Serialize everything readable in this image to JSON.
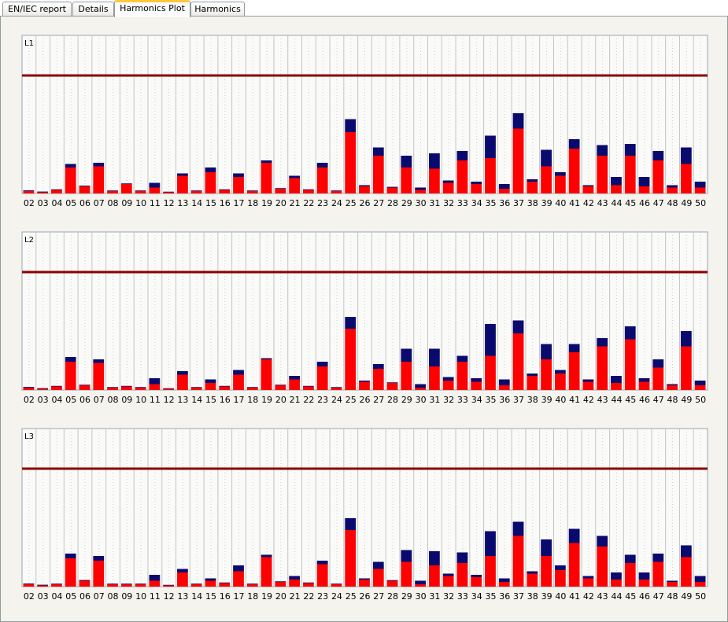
{
  "tabs": [
    {
      "label": "EN/IEC report",
      "active": false
    },
    {
      "label": "Details",
      "active": false
    },
    {
      "label": "Harmonics Plot",
      "active": true
    },
    {
      "label": "Harmonics",
      "active": false
    }
  ],
  "colors": {
    "bar_main": "#ff0000",
    "bar_top": "#0a0a6e",
    "limit_line": "#8b0000",
    "panel_bg": "#f4f3ee",
    "axis_border": "#9aa5b0"
  },
  "chart_data": [
    {
      "type": "bar",
      "stacked": true,
      "title": "L1",
      "categories": [
        "02",
        "03",
        "04",
        "05",
        "06",
        "07",
        "08",
        "09",
        "10",
        "11",
        "12",
        "13",
        "14",
        "15",
        "16",
        "17",
        "18",
        "19",
        "20",
        "21",
        "22",
        "23",
        "24",
        "25",
        "26",
        "27",
        "28",
        "29",
        "30",
        "31",
        "32",
        "33",
        "34",
        "35",
        "36",
        "37",
        "38",
        "39",
        "40",
        "41",
        "42",
        "43",
        "44",
        "45",
        "46",
        "47",
        "48",
        "49",
        "50"
      ],
      "limit": 100,
      "ylim": [
        0,
        134
      ],
      "series": [
        {
          "values": [
            2,
            1,
            3,
            22,
            6,
            23,
            2,
            8,
            2,
            5,
            1,
            15,
            2,
            18,
            3,
            14,
            2,
            26,
            4,
            13,
            3,
            22,
            2,
            52,
            6,
            32,
            5,
            22,
            3,
            21,
            9,
            28,
            8,
            30,
            4,
            55,
            10,
            23,
            15,
            38,
            6,
            32,
            7,
            32,
            6,
            28,
            5,
            25,
            5
          ]
        },
        {
          "values": [
            0.6,
            0.6,
            0.5,
            3,
            0.6,
            3,
            0.5,
            0.5,
            0.5,
            4,
            0.5,
            2,
            0.5,
            4,
            0.5,
            3,
            0.5,
            2,
            0.5,
            2,
            0.5,
            4,
            0.5,
            11,
            1,
            7,
            0.6,
            10,
            2,
            13,
            2,
            8,
            2,
            19,
            4,
            13,
            2,
            14,
            3,
            8,
            1,
            9,
            7,
            10,
            8,
            8,
            2,
            14,
            5
          ]
        }
      ]
    },
    {
      "type": "bar",
      "stacked": true,
      "title": "L2",
      "categories": [
        "02",
        "03",
        "04",
        "05",
        "06",
        "07",
        "08",
        "09",
        "10",
        "11",
        "12",
        "13",
        "14",
        "15",
        "16",
        "17",
        "18",
        "19",
        "20",
        "21",
        "22",
        "23",
        "24",
        "25",
        "26",
        "27",
        "28",
        "29",
        "30",
        "31",
        "32",
        "33",
        "34",
        "35",
        "36",
        "37",
        "38",
        "39",
        "40",
        "41",
        "42",
        "43",
        "44",
        "45",
        "46",
        "47",
        "48",
        "49",
        "50"
      ],
      "limit": 100,
      "ylim": [
        0,
        134
      ],
      "series": [
        {
          "values": [
            2,
            1,
            3,
            24,
            4,
            23,
            2,
            3,
            2,
            5,
            1,
            13,
            2,
            6,
            3,
            13,
            2,
            26,
            4,
            9,
            3,
            20,
            2,
            52,
            7,
            18,
            6,
            24,
            2,
            20,
            8,
            24,
            7,
            29,
            4,
            48,
            12,
            26,
            14,
            32,
            7,
            37,
            6,
            43,
            7,
            19,
            4,
            37,
            4
          ]
        },
        {
          "values": [
            0.6,
            0.6,
            0.5,
            4,
            0.5,
            3,
            0.5,
            0.5,
            0.5,
            5,
            0.5,
            3,
            0.5,
            3,
            0.5,
            4,
            0.5,
            1,
            0.5,
            3,
            0.5,
            4,
            0.5,
            10,
            1,
            4,
            0.5,
            11,
            3,
            15,
            3,
            5,
            3,
            27,
            5,
            11,
            2,
            13,
            3,
            7,
            2,
            7,
            6,
            11,
            3,
            7,
            1,
            13,
            4
          ]
        }
      ]
    },
    {
      "type": "bar",
      "stacked": true,
      "title": "L3",
      "categories": [
        "02",
        "03",
        "04",
        "05",
        "06",
        "07",
        "08",
        "09",
        "10",
        "11",
        "12",
        "13",
        "14",
        "15",
        "16",
        "17",
        "18",
        "19",
        "20",
        "21",
        "22",
        "23",
        "24",
        "25",
        "26",
        "27",
        "28",
        "29",
        "30",
        "31",
        "32",
        "33",
        "34",
        "35",
        "36",
        "37",
        "38",
        "39",
        "40",
        "41",
        "42",
        "43",
        "44",
        "45",
        "46",
        "47",
        "48",
        "49",
        "50"
      ],
      "limit": 100,
      "ylim": [
        0,
        134
      ],
      "series": [
        {
          "values": [
            2,
            1,
            2,
            24,
            5,
            22,
            2,
            2,
            2,
            5,
            1,
            12,
            2,
            5,
            3,
            13,
            2,
            25,
            4,
            6,
            3,
            19,
            2,
            48,
            6,
            15,
            5,
            21,
            2,
            18,
            9,
            20,
            8,
            26,
            4,
            43,
            11,
            26,
            14,
            37,
            7,
            34,
            6,
            20,
            6,
            21,
            4,
            25,
            4
          ]
        },
        {
          "values": [
            0.6,
            0.6,
            0.5,
            4,
            0.6,
            4,
            0.5,
            0.5,
            0.5,
            5,
            0.5,
            3,
            0.5,
            2,
            0.5,
            5,
            0.5,
            2,
            0.5,
            3,
            0.5,
            3,
            0.5,
            10,
            1,
            6,
            0.5,
            10,
            3,
            12,
            2,
            9,
            2,
            21,
            3,
            12,
            2,
            14,
            4,
            12,
            2,
            9,
            6,
            7,
            6,
            7,
            1,
            10,
            5
          ]
        }
      ]
    }
  ]
}
